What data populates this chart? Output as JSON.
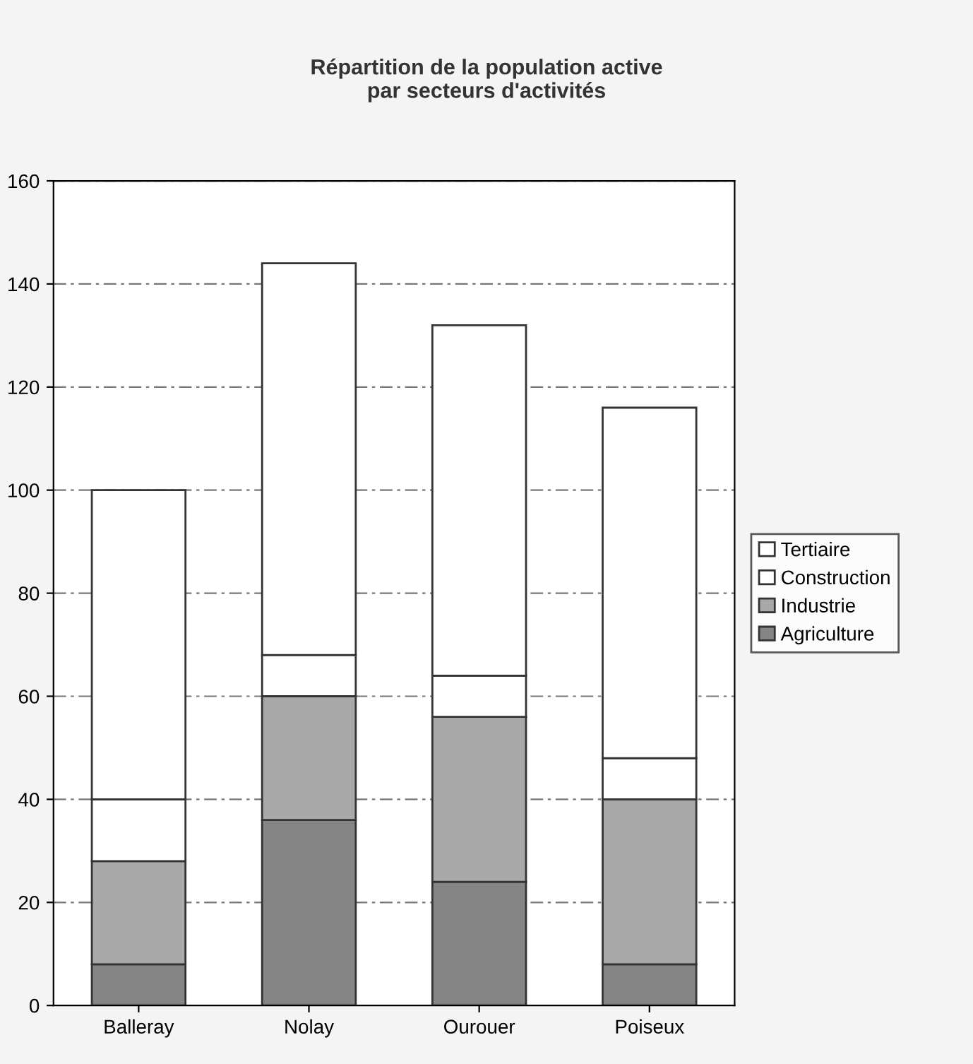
{
  "chart_data": {
    "type": "bar",
    "title": "Répartition de la population active\npar secteurs d'activités",
    "stacked": true,
    "categories": [
      "Balleray",
      "Nolay",
      "Ourouer",
      "Poiseux"
    ],
    "series": [
      {
        "name": "Agriculture",
        "color": "#858585",
        "values": [
          8,
          36,
          24,
          8
        ]
      },
      {
        "name": "Industrie",
        "color": "#a9a9a9",
        "values": [
          20,
          24,
          32,
          32
        ]
      },
      {
        "name": "Construction",
        "color": "#ffffff",
        "values": [
          12,
          8,
          8,
          8
        ]
      },
      {
        "name": "Tertiaire",
        "color": "#ffffff",
        "values": [
          60,
          76,
          68,
          68
        ]
      }
    ],
    "ylim": [
      0,
      160
    ],
    "yticks": [
      0,
      20,
      40,
      60,
      80,
      100,
      120,
      140,
      160
    ],
    "grid": "y",
    "legend": "right"
  }
}
